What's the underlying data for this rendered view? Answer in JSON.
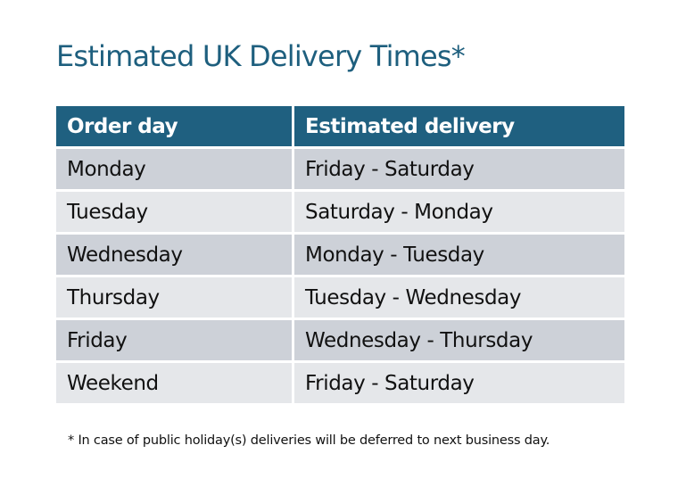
{
  "title": "Estimated UK Delivery Times*",
  "table": {
    "headers": [
      "Order day",
      "Estimated delivery"
    ],
    "rows": [
      [
        "Monday",
        "Friday - Saturday"
      ],
      [
        "Tuesday",
        "Saturday - Monday"
      ],
      [
        "Wednesday",
        "Monday - Tuesday"
      ],
      [
        "Thursday",
        "Tuesday - Wednesday"
      ],
      [
        "Friday",
        "Wednesday - Thursday"
      ],
      [
        "Weekend",
        "Friday - Saturday"
      ]
    ]
  },
  "footnote": "* In case of public holiday(s) deliveries will be deferred to next business day.",
  "colors": {
    "header_bg": "#1f6080",
    "title": "#1e5f7e",
    "row_dark": "#cdd1d8",
    "row_light": "#e5e7ea"
  }
}
